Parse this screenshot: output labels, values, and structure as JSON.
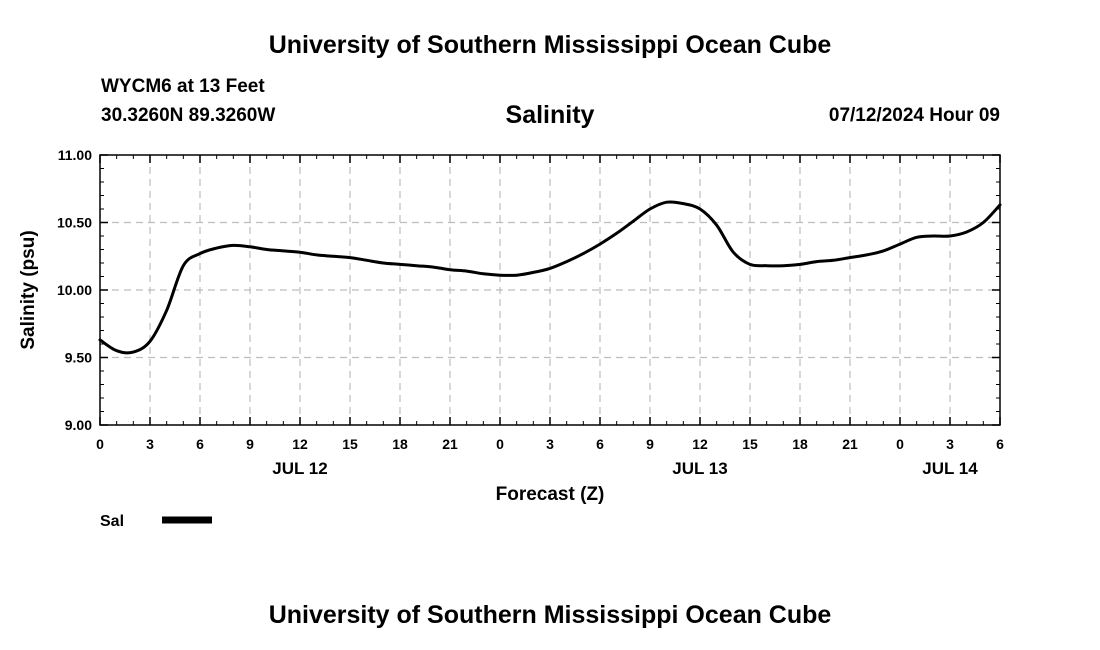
{
  "header": {
    "title": "University of Southern Mississippi Ocean Cube",
    "station": "WYCM6 at 13 Feet",
    "coords": "30.3260N  89.3260W",
    "timestamp": "07/12/2024 Hour 09",
    "footer_title": "University of Southern Mississippi Ocean Cube"
  },
  "chart_data": {
    "type": "line",
    "title": "Salinity",
    "xlabel": "Forecast (Z)",
    "ylabel": "Salinity (psu)",
    "ylim": [
      9.0,
      11.0
    ],
    "xlim": [
      0,
      54
    ],
    "yticks": [
      "9.00",
      "9.50",
      "10.00",
      "10.50",
      "11.00"
    ],
    "xticks": [
      "0",
      "3",
      "6",
      "9",
      "12",
      "15",
      "18",
      "21",
      "0",
      "3",
      "6",
      "9",
      "12",
      "15",
      "18",
      "21",
      "0",
      "3",
      "6"
    ],
    "date_labels": [
      {
        "label": "JUL 12",
        "hour": 12
      },
      {
        "label": "JUL 13",
        "hour": 36
      },
      {
        "label": "JUL 14",
        "hour": 51
      }
    ],
    "grid": true,
    "legend": "bottom-left",
    "series": [
      {
        "name": "Sal",
        "color": "#000000",
        "x": [
          0,
          1,
          2,
          3,
          4,
          5,
          6,
          7,
          8,
          9,
          10,
          11,
          12,
          13,
          14,
          15,
          16,
          17,
          18,
          19,
          20,
          21,
          22,
          23,
          24,
          25,
          26,
          27,
          28,
          29,
          30,
          31,
          32,
          33,
          34,
          35,
          36,
          37,
          38,
          39,
          40,
          41,
          42,
          43,
          44,
          45,
          46,
          47,
          48,
          49,
          50,
          51,
          52,
          53,
          54
        ],
        "values": [
          9.63,
          9.55,
          9.54,
          9.62,
          9.85,
          10.18,
          10.27,
          10.31,
          10.33,
          10.32,
          10.3,
          10.29,
          10.28,
          10.26,
          10.25,
          10.24,
          10.22,
          10.2,
          10.19,
          10.18,
          10.17,
          10.15,
          10.14,
          10.12,
          10.11,
          10.11,
          10.13,
          10.16,
          10.21,
          10.27,
          10.34,
          10.42,
          10.51,
          10.6,
          10.65,
          10.64,
          10.6,
          10.48,
          10.28,
          10.19,
          10.18,
          10.18,
          10.19,
          10.21,
          10.22,
          10.24,
          10.26,
          10.29,
          10.34,
          10.39,
          10.4,
          10.4,
          10.43,
          10.5,
          10.63
        ]
      }
    ]
  }
}
